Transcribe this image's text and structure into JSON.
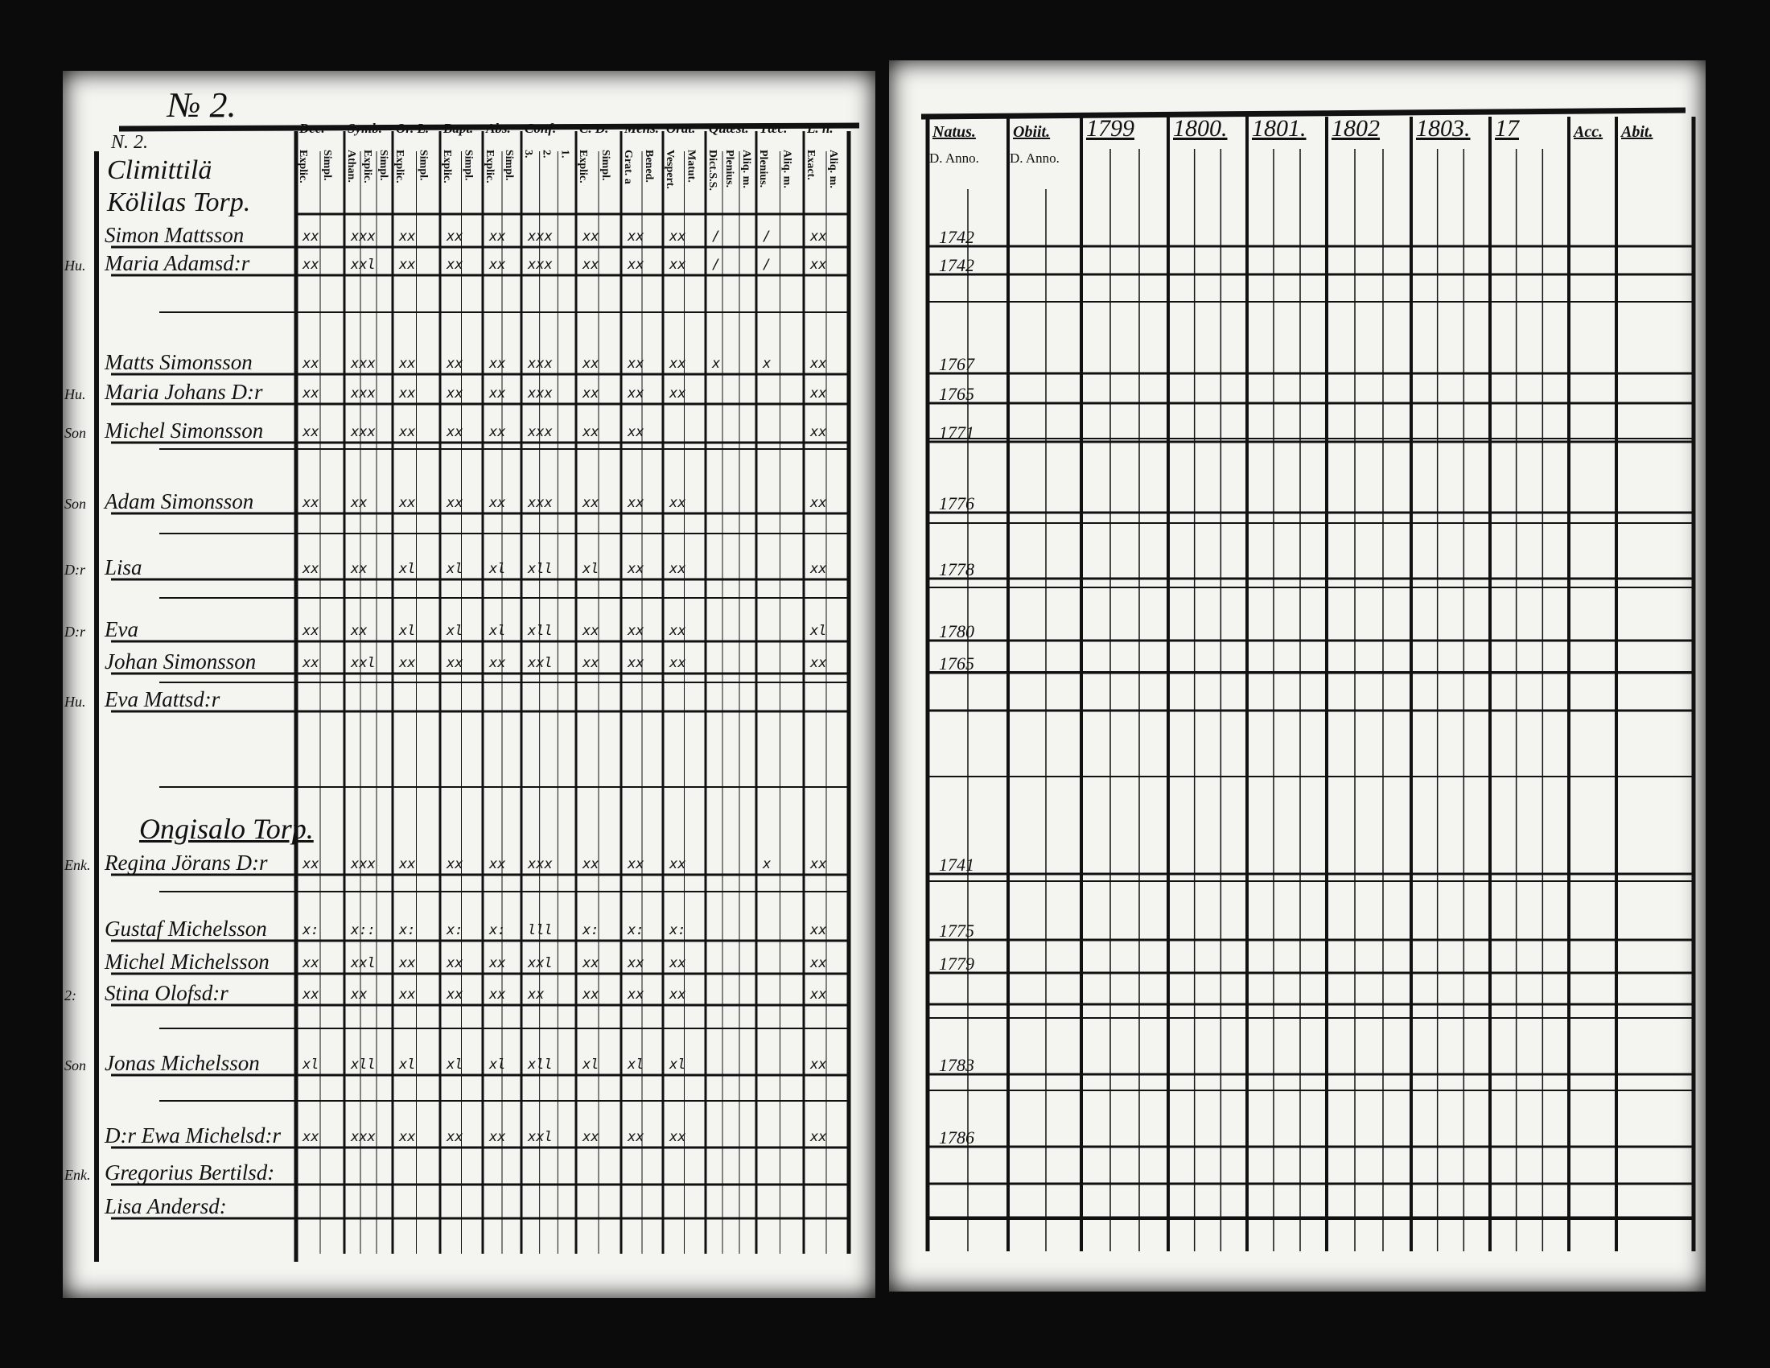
{
  "left_page": {
    "page_number": "№ 2.",
    "header_block": [
      "N. 2.",
      "Climittilä",
      "Kölilas Torp."
    ],
    "column_groups": [
      {
        "label": "Dec.",
        "subs": [
          "Explic.",
          "Simpl."
        ]
      },
      {
        "label": "Symb.",
        "subs": [
          "Athan.",
          "Explic.",
          "Simpl."
        ]
      },
      {
        "label": "Or. L.",
        "subs": [
          "Explic.",
          "Simpl."
        ]
      },
      {
        "label": "Bapt.",
        "subs": [
          "Explic.",
          "Simpl."
        ]
      },
      {
        "label": "Abs.",
        "subs": [
          "Explic.",
          "Simpl."
        ]
      },
      {
        "label": "Conf.",
        "subs": [
          "3.",
          "2.",
          "1."
        ]
      },
      {
        "label": "C. D.",
        "subs": [
          "Explic.",
          "Simpl."
        ]
      },
      {
        "label": "Mens.",
        "subs": [
          "Grat. a",
          "Bened."
        ]
      },
      {
        "label": "Orat.",
        "subs": [
          "Vespert.",
          "Matut."
        ]
      },
      {
        "label": "Quæst.",
        "subs": [
          "Dict.S.S.",
          "Plenius.",
          "Aliq. m."
        ]
      },
      {
        "label": "Tæc.",
        "subs": [
          "Plenius.",
          "Aliq. m."
        ]
      },
      {
        "label": "L. n.",
        "subs": [
          "Exact.",
          "Aliq. m."
        ]
      }
    ],
    "rows": [
      {
        "role": "",
        "name": "Simon Mattsson",
        "marks": [
          "xx",
          "xxx",
          "xx",
          "xx",
          "xx",
          "xxx",
          "xx",
          "xx",
          "xx",
          "/",
          "/",
          "xx"
        ]
      },
      {
        "role": "Hu.",
        "name": "Maria Adamsd:r",
        "marks": [
          "xx",
          "xxl",
          "xx",
          "xx",
          "xx",
          "xxx",
          "xx",
          "xx",
          "xx",
          "/",
          "/",
          "xx"
        ]
      },
      {
        "role": "",
        "name": "Matts Simonsson",
        "marks": [
          "xx",
          "xxx",
          "xx",
          "xx",
          "xx",
          "xxx",
          "xx",
          "xx",
          "xx",
          "x",
          "x",
          "xx"
        ]
      },
      {
        "role": "Hu.",
        "name": "Maria Johans D:r",
        "marks": [
          "xx",
          "xxx",
          "xx",
          "xx",
          "xx",
          "xxx",
          "xx",
          "xx",
          "xx",
          "",
          "",
          "xx"
        ]
      },
      {
        "role": "Son",
        "name": "Michel Simonsson",
        "marks": [
          "xx",
          "xxx",
          "xx",
          "xx",
          "xx",
          "xxx",
          "xx",
          "xx",
          "",
          "",
          "",
          "xx"
        ]
      },
      {
        "role": "Son",
        "name": "Adam Simonsson",
        "marks": [
          "xx",
          "xx",
          "xx",
          "xx",
          "xx",
          "xxx",
          "xx",
          "xx",
          "xx",
          "",
          "",
          "xx"
        ]
      },
      {
        "role": "D:r",
        "name": "Lisa",
        "marks": [
          "xx",
          "xx",
          "xl",
          "xl",
          "xl",
          "xll",
          "xl",
          "xx",
          "xx",
          "",
          "",
          "xx"
        ]
      },
      {
        "role": "D:r",
        "name": "Eva",
        "marks": [
          "xx",
          "xx",
          "xl",
          "xl",
          "xl",
          "xll",
          "xx",
          "xx",
          "xx",
          "",
          "",
          "xl"
        ]
      },
      {
        "role": "",
        "name": "Johan Simonsson",
        "marks": [
          "xx",
          "xxl",
          "xx",
          "xx",
          "xx",
          "xxl",
          "xx",
          "xx",
          "xx",
          "",
          "",
          "xx"
        ]
      },
      {
        "role": "Hu.",
        "name": "Eva Mattsd:r",
        "marks": [
          "",
          "",
          "",
          "",
          "",
          "",
          "",
          "",
          "",
          "",
          "",
          ""
        ]
      },
      {
        "role": "Enk.",
        "name": "Regina Jörans D:r",
        "marks": [
          "xx",
          "xxx",
          "xx",
          "xx",
          "xx",
          "xxx",
          "xx",
          "xx",
          "xx",
          "",
          "x",
          "xx"
        ]
      },
      {
        "role": "",
        "name": "Gustaf Michelsson",
        "marks": [
          "x:",
          "x::",
          "x:",
          "x:",
          "x:",
          "lll",
          "x:",
          "x:",
          "x:",
          "",
          "",
          "xx"
        ]
      },
      {
        "role": "",
        "name": "Michel Michelsson",
        "marks": [
          "xx",
          "xxl",
          "xx",
          "xx",
          "xx",
          "xxl",
          "xx",
          "xx",
          "xx",
          "",
          "",
          "xx"
        ]
      },
      {
        "role": "2:",
        "name": "Stina Olofsd:r",
        "marks": [
          "xx",
          "xx",
          "xx",
          "xx",
          "xx",
          "xx",
          "xx",
          "xx",
          "xx",
          "",
          "",
          "xx"
        ]
      },
      {
        "role": "Son",
        "name": "Jonas Michelsson",
        "marks": [
          "xl",
          "xll",
          "xl",
          "xl",
          "xl",
          "xll",
          "xl",
          "xl",
          "xl",
          "",
          "",
          "xx"
        ]
      },
      {
        "role": "",
        "name": "D:r Ewa Michelsd:r",
        "marks": [
          "xx",
          "xxx",
          "xx",
          "xx",
          "xx",
          "xxl",
          "xx",
          "xx",
          "xx",
          "",
          "",
          "xx"
        ]
      },
      {
        "role": "Enk.",
        "name": "Gregorius Bertilsd:",
        "marks": [
          "",
          "",
          "",
          "",
          "",
          "",
          "",
          "",
          "",
          "",
          "",
          ""
        ]
      },
      {
        "role": "",
        "name": "Lisa Andersd:",
        "marks": [
          "",
          "",
          "",
          "",
          "",
          "",
          "",
          "",
          "",
          "",
          "",
          ""
        ]
      }
    ],
    "section_heading": "Ongisalo Torp."
  },
  "right_page": {
    "columns": [
      {
        "label": "Natus.",
        "sub": "D. Anno."
      },
      {
        "label": "Obiit.",
        "sub": "D. Anno."
      },
      {
        "label": "1799",
        "sub": ""
      },
      {
        "label": "1800.",
        "sub": ""
      },
      {
        "label": "1801.",
        "sub": ""
      },
      {
        "label": "1802",
        "sub": ""
      },
      {
        "label": "1803.",
        "sub": ""
      },
      {
        "label": "17",
        "sub": ""
      },
      {
        "label": "Acc.",
        "sub": ""
      },
      {
        "label": "Abit.",
        "sub": ""
      }
    ],
    "rows": [
      {
        "natus": "1742"
      },
      {
        "natus": "1742"
      },
      {
        "natus": "1767"
      },
      {
        "natus": "1765"
      },
      {
        "natus": "1771"
      },
      {
        "natus": "1776"
      },
      {
        "natus": "1778"
      },
      {
        "natus": "1780"
      },
      {
        "natus": "1765"
      },
      {
        "natus": ""
      },
      {
        "natus": "1741"
      },
      {
        "natus": "1775"
      },
      {
        "natus": "1779"
      },
      {
        "natus": ""
      },
      {
        "natus": "1783"
      },
      {
        "natus": "1786"
      },
      {
        "natus": ""
      },
      {
        "natus": ""
      }
    ]
  }
}
